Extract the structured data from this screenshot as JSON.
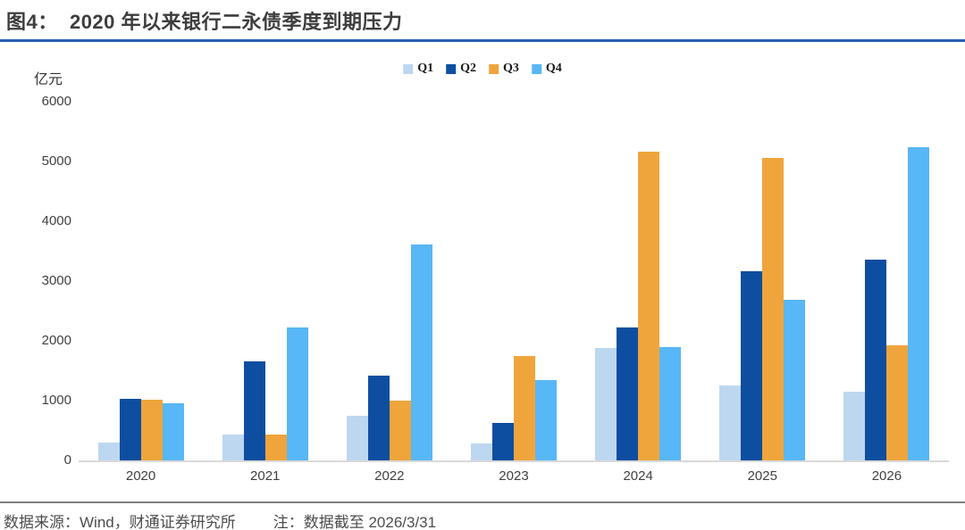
{
  "header": {
    "title": "图4：  2020 年以来银行二永债季度到期压力"
  },
  "chart_data": {
    "type": "bar",
    "title": "2020 年以来银行二永债季度到期压力",
    "xlabel": "",
    "ylabel": "亿元",
    "categories": [
      "2020",
      "2021",
      "2022",
      "2023",
      "2024",
      "2025",
      "2026"
    ],
    "series": [
      {
        "name": "Q1",
        "color": "#bdd7f1",
        "values": [
          300,
          440,
          750,
          290,
          1880,
          1250,
          1150
        ]
      },
      {
        "name": "Q2",
        "color": "#0e4ea0",
        "values": [
          1030,
          1650,
          1420,
          630,
          2230,
          3170,
          3360
        ]
      },
      {
        "name": "Q3",
        "color": "#efa53c",
        "values": [
          1020,
          430,
          1000,
          1750,
          5170,
          5060,
          1930
        ]
      },
      {
        "name": "Q4",
        "color": "#58b7f6",
        "values": [
          960,
          2230,
          3610,
          1340,
          1890,
          2690,
          5240
        ]
      }
    ],
    "ylim": [
      0,
      6000
    ],
    "yticks": [
      0,
      1000,
      2000,
      3000,
      4000,
      5000,
      6000
    ],
    "grid": false,
    "legend_position": "top-center"
  },
  "footer": {
    "source": "数据来源：Wind，财通证券研究所",
    "note": "注：数据截至 2026/3/31"
  },
  "colors": {
    "accent_blue": "#2660ae",
    "baseline_gray": "#d9d9d9",
    "footer_line_gray": "#7f7f7f",
    "title_text": "#3d3d3d",
    "body_text": "#404040",
    "footer_text": "#4d4d4d"
  }
}
